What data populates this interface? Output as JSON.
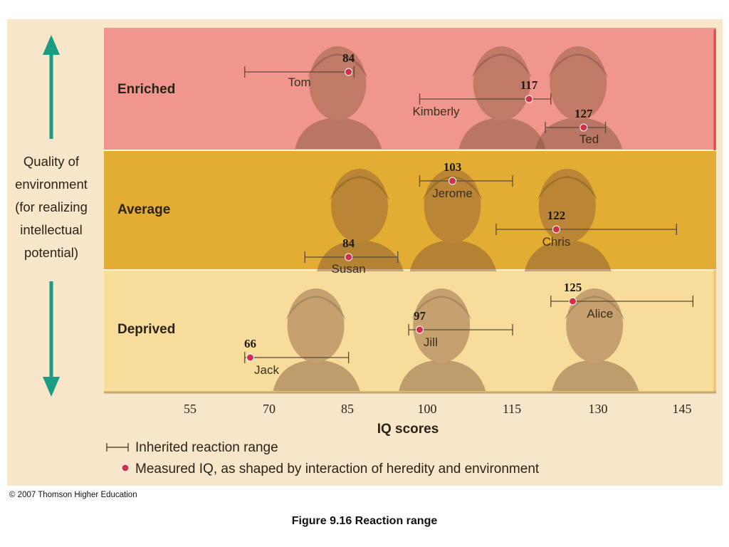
{
  "quality_label": [
    "Quality of",
    "environment",
    "(for realizing",
    "intellectual",
    "potential)"
  ],
  "bands": [
    {
      "key": "enriched",
      "label": "Enriched",
      "color": "#f0968c"
    },
    {
      "key": "average",
      "label": "Average",
      "color": "#e3ac32"
    },
    {
      "key": "deprived",
      "label": "Deprived",
      "color": "#f8dc9c"
    }
  ],
  "axis": {
    "title": "IQ scores",
    "ticks": [
      "55",
      "70",
      "85",
      "100",
      "115",
      "130",
      "145"
    ]
  },
  "legend": {
    "range_label": "Inherited reaction range",
    "point_label": "Measured IQ, as shaped by interaction of heredity and environment"
  },
  "copyright": "© 2007 Thomson Higher Education",
  "caption": "Figure 9.16  Reaction range",
  "colors": {
    "arrow": "#1c9b84",
    "point": "#d03048",
    "range_line": "#5a4a38"
  },
  "people": [
    {
      "name": "Tom",
      "band": "enriched",
      "iq": "84",
      "range": [
        65,
        85
      ]
    },
    {
      "name": "Kimberly",
      "band": "enriched",
      "iq": "117",
      "range": [
        97,
        121
      ]
    },
    {
      "name": "Ted",
      "band": "enriched",
      "iq": "127",
      "range": [
        120,
        131
      ]
    },
    {
      "name": "Jerome",
      "band": "average",
      "iq": "103",
      "range": [
        97,
        114
      ]
    },
    {
      "name": "Chris",
      "band": "average",
      "iq": "122",
      "range": [
        111,
        144
      ]
    },
    {
      "name": "Susan",
      "band": "average",
      "iq": "84",
      "range": [
        76,
        93
      ]
    },
    {
      "name": "Alice",
      "band": "deprived",
      "iq": "125",
      "range": [
        121,
        147
      ]
    },
    {
      "name": "Jill",
      "band": "deprived",
      "iq": "97",
      "range": [
        95,
        114
      ]
    },
    {
      "name": "Jack",
      "band": "deprived",
      "iq": "66",
      "range": [
        65,
        84
      ]
    }
  ]
}
